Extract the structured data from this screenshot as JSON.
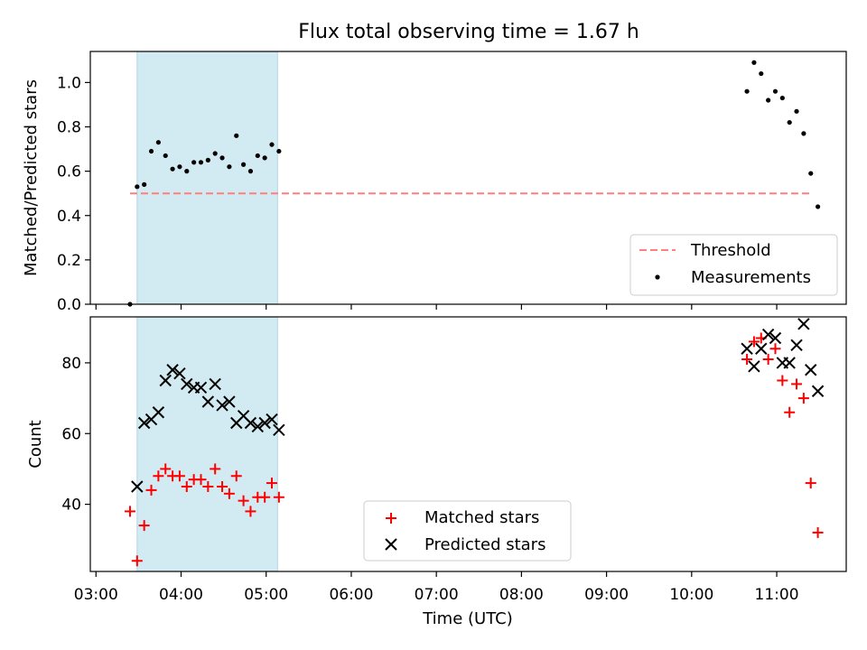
{
  "chart_data": [
    {
      "type": "scatter",
      "title": "Flux total observing time = 1.67 h",
      "ylabel": "Matched/Predicted stars",
      "ylim": [
        0,
        1.14
      ],
      "yticks": [
        "0.0",
        "0.2",
        "0.4",
        "0.6",
        "0.8",
        "1.0"
      ],
      "ytick_values": [
        0,
        0.2,
        0.4,
        0.6,
        0.8,
        1.0
      ],
      "shaded_span": [
        "03:29",
        "05:08"
      ],
      "shaded_color": "#add8e6",
      "threshold": {
        "name": "Threshold",
        "value": 0.5,
        "x": [
          "03:24",
          "11:24"
        ],
        "color": "#ff7f7f"
      },
      "series": [
        {
          "name": "Measurements",
          "color": "#000000",
          "x": [
            "03:24",
            "03:29",
            "03:34",
            "03:39",
            "03:44",
            "03:49",
            "03:54",
            "03:59",
            "04:04",
            "04:09",
            "04:14",
            "04:19",
            "04:24",
            "04:29",
            "04:34",
            "04:39",
            "04:44",
            "04:49",
            "04:54",
            "04:59",
            "05:04",
            "05:09",
            "10:39",
            "10:44",
            "10:49",
            "10:54",
            "10:59",
            "11:04",
            "11:09",
            "11:14",
            "11:19",
            "11:24",
            "11:29"
          ],
          "y": [
            0.0,
            0.53,
            0.54,
            0.69,
            0.73,
            0.67,
            0.61,
            0.62,
            0.6,
            0.64,
            0.64,
            0.65,
            0.68,
            0.66,
            0.62,
            0.76,
            0.63,
            0.6,
            0.67,
            0.66,
            0.72,
            0.69,
            0.96,
            1.09,
            1.04,
            0.92,
            0.96,
            0.93,
            0.82,
            0.87,
            0.77,
            0.59,
            0.44
          ]
        }
      ],
      "legend": {
        "placement": "lower-right",
        "entries": [
          "Threshold",
          "Measurements"
        ]
      }
    },
    {
      "type": "scatter",
      "xlabel": "Time (UTC)",
      "ylabel": "Count",
      "ylim": [
        21,
        93
      ],
      "yticks": [
        "40",
        "60",
        "80"
      ],
      "ytick_values": [
        40,
        60,
        80
      ],
      "xlim": [
        "02:56",
        "11:49"
      ],
      "xticks": [
        "03:00",
        "04:00",
        "05:00",
        "06:00",
        "07:00",
        "08:00",
        "09:00",
        "10:00",
        "11:00"
      ],
      "shaded_span": [
        "03:29",
        "05:08"
      ],
      "shaded_color": "#add8e6",
      "series": [
        {
          "name": "Matched stars",
          "color": "#ff0000",
          "marker": "plus",
          "x": [
            "03:24",
            "03:29",
            "03:34",
            "03:39",
            "03:44",
            "03:49",
            "03:54",
            "03:59",
            "04:04",
            "04:09",
            "04:14",
            "04:19",
            "04:24",
            "04:29",
            "04:34",
            "04:39",
            "04:44",
            "04:49",
            "04:54",
            "04:59",
            "05:04",
            "05:09",
            "10:39",
            "10:44",
            "10:49",
            "10:54",
            "10:59",
            "11:04",
            "11:09",
            "11:14",
            "11:19",
            "11:24",
            "11:29"
          ],
          "y": [
            38,
            24,
            34,
            44,
            48,
            50,
            48,
            48,
            45,
            47,
            47,
            45,
            50,
            45,
            43,
            48,
            41,
            38,
            42,
            42,
            46,
            42,
            81,
            86,
            87,
            81,
            84,
            75,
            66,
            74,
            70,
            46,
            32
          ]
        },
        {
          "name": "Predicted stars",
          "color": "#000000",
          "marker": "x",
          "x": [
            "03:29",
            "03:34",
            "03:39",
            "03:44",
            "03:49",
            "03:54",
            "03:59",
            "04:04",
            "04:09",
            "04:14",
            "04:19",
            "04:24",
            "04:29",
            "04:34",
            "04:39",
            "04:44",
            "04:49",
            "04:54",
            "04:59",
            "05:04",
            "05:09",
            "10:39",
            "10:44",
            "10:49",
            "10:54",
            "10:59",
            "11:04",
            "11:09",
            "11:14",
            "11:19",
            "11:24",
            "11:29"
          ],
          "y": [
            45,
            63,
            64,
            66,
            75,
            78,
            77,
            74,
            73,
            73,
            69,
            74,
            68,
            69,
            63,
            65,
            63,
            62,
            63,
            64,
            61,
            84,
            79,
            84,
            88,
            87,
            80,
            80,
            85,
            91,
            78,
            72
          ]
        }
      ],
      "legend": {
        "placement": "lower-center",
        "entries": [
          "Matched stars",
          "Predicted stars"
        ]
      }
    }
  ]
}
